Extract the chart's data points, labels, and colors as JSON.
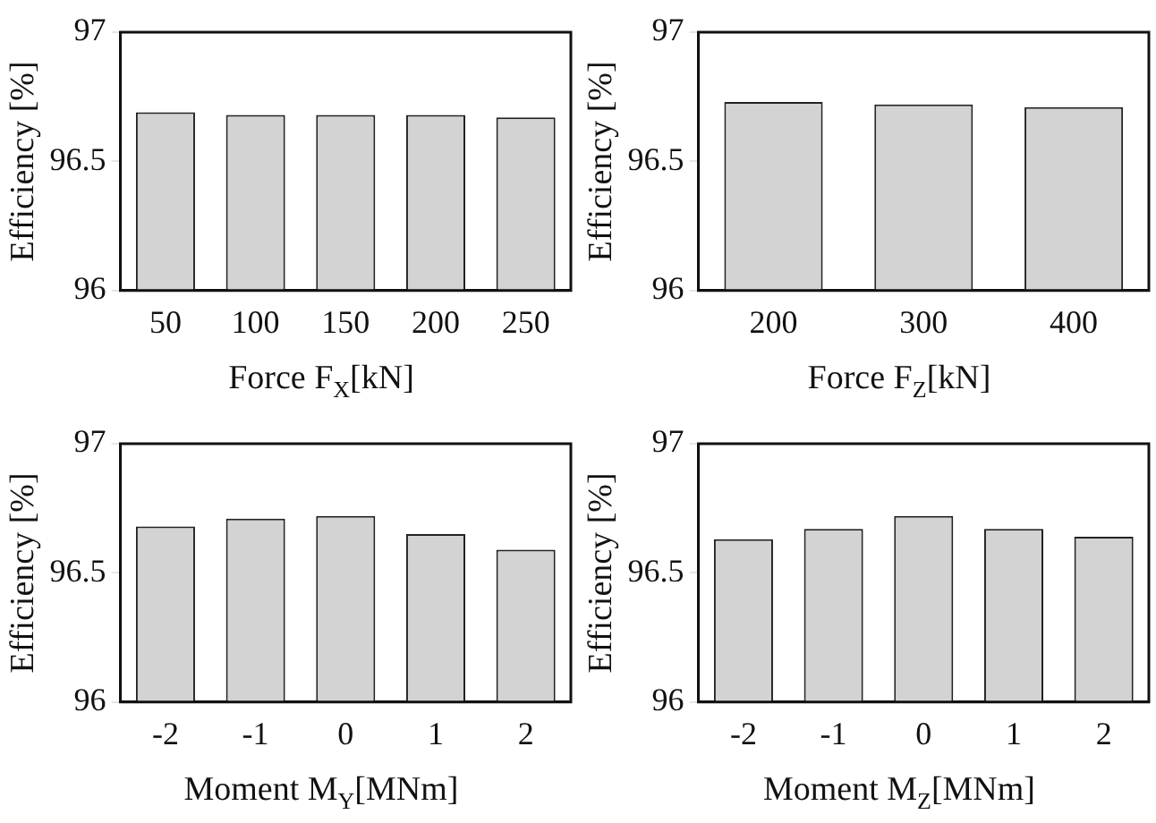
{
  "chart_data": [
    {
      "type": "bar",
      "categories": [
        "50",
        "100",
        "150",
        "200",
        "250"
      ],
      "values": [
        96.69,
        96.68,
        96.68,
        96.68,
        96.67
      ],
      "color": "#d3d3d3",
      "xlabel": "Force F$_{X}$[kN]",
      "ylabel": "Efficiency [%]",
      "ylim": [
        96,
        97
      ],
      "yticks": [
        96,
        96.5,
        97
      ],
      "grid": false
    },
    {
      "type": "bar",
      "categories": [
        "200",
        "300",
        "400"
      ],
      "values": [
        96.73,
        96.72,
        96.71
      ],
      "color": "#d3d3d3",
      "xlabel": "Force F$_{Z}$[kN]",
      "ylabel": "Efficiency [%]",
      "ylim": [
        96,
        97
      ],
      "yticks": [
        96,
        96.5,
        97
      ],
      "grid": false
    },
    {
      "type": "bar",
      "categories": [
        "-2",
        "-1",
        "0",
        "1",
        "2"
      ],
      "values": [
        96.68,
        96.71,
        96.72,
        96.65,
        96.59
      ],
      "color": "#d3d3d3",
      "xlabel": "Moment M$_{Y}$[MNm]",
      "ylabel": "Efficiency [%]",
      "ylim": [
        96,
        97
      ],
      "yticks": [
        96,
        96.5,
        97
      ],
      "grid": false
    },
    {
      "type": "bar",
      "categories": [
        "-2",
        "-1",
        "0",
        "1",
        "2"
      ],
      "values": [
        96.63,
        96.67,
        96.72,
        96.67,
        96.64
      ],
      "color": "#d3d3d3",
      "xlabel": "Moment M$_{Z}$[MNm]",
      "ylabel": "Efficiency [%]",
      "ylim": [
        96,
        97
      ],
      "yticks": [
        96,
        96.5,
        97
      ],
      "grid": false
    }
  ]
}
